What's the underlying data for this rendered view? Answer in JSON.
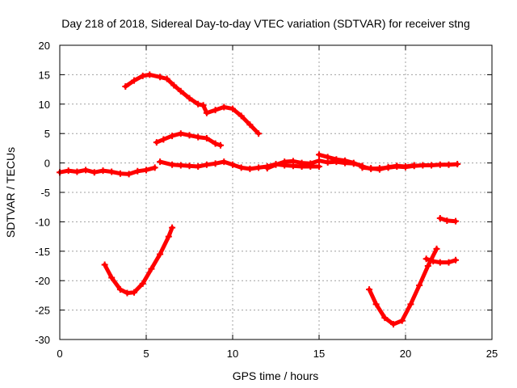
{
  "chart_data": {
    "type": "line",
    "title": "Day 218 of 2018, Sidereal Day-to-day VTEC variation (SDTVAR) for receiver stng",
    "xlabel": "GPS time / hours",
    "ylabel": "SDTVAR / TECUs",
    "xlim": [
      0,
      25
    ],
    "ylim": [
      -30,
      20
    ],
    "xticks": [
      0,
      5,
      10,
      15,
      20,
      25
    ],
    "yticks": [
      -30,
      -25,
      -20,
      -15,
      -10,
      -5,
      0,
      5,
      10,
      15,
      20
    ],
    "grid": true,
    "legend": "none",
    "color": "#ff0000",
    "series": [
      {
        "name": "track-1",
        "points": [
          [
            0.0,
            -1.6
          ],
          [
            0.5,
            -1.3
          ],
          [
            1.0,
            -1.5
          ],
          [
            1.5,
            -1.2
          ],
          [
            2.0,
            -1.6
          ],
          [
            2.5,
            -1.3
          ],
          [
            3.0,
            -1.5
          ],
          [
            3.5,
            -1.8
          ],
          [
            4.0,
            -1.9
          ],
          [
            4.5,
            -1.4
          ],
          [
            5.0,
            -1.2
          ],
          [
            5.5,
            -0.8
          ]
        ]
      },
      {
        "name": "track-2",
        "points": [
          [
            5.8,
            0.2
          ],
          [
            6.5,
            -0.3
          ],
          [
            7.0,
            -0.4
          ],
          [
            7.5,
            -0.5
          ],
          [
            8.0,
            -0.6
          ],
          [
            8.5,
            -0.3
          ],
          [
            9.0,
            -0.1
          ],
          [
            9.5,
            0.2
          ],
          [
            10.0,
            -0.3
          ],
          [
            10.5,
            -0.8
          ],
          [
            11.0,
            -1.0
          ],
          [
            11.5,
            -0.8
          ],
          [
            12.0,
            -0.6
          ],
          [
            12.5,
            -0.2
          ],
          [
            13.0,
            -0.4
          ],
          [
            13.5,
            -0.5
          ],
          [
            14.0,
            -0.6
          ],
          [
            14.5,
            -0.6
          ],
          [
            15.0,
            -0.6
          ]
        ]
      },
      {
        "name": "track-3",
        "points": [
          [
            12.0,
            -0.9
          ],
          [
            12.5,
            -0.3
          ],
          [
            13.0,
            0.2
          ],
          [
            13.5,
            0.3
          ],
          [
            14.0,
            0.0
          ],
          [
            14.5,
            -0.1
          ],
          [
            15.0,
            0.4
          ],
          [
            15.5,
            0.1
          ],
          [
            16.0,
            0.2
          ],
          [
            16.5,
            0.0
          ],
          [
            17.0,
            -0.1
          ],
          [
            17.5,
            -0.5
          ]
        ]
      },
      {
        "name": "track-4",
        "points": [
          [
            15.0,
            1.4
          ],
          [
            15.5,
            1.0
          ],
          [
            16.0,
            0.6
          ],
          [
            16.5,
            0.4
          ],
          [
            17.0,
            0.0
          ],
          [
            17.5,
            -0.6
          ],
          [
            18.0,
            -1.0
          ],
          [
            18.5,
            -0.9
          ],
          [
            19.0,
            -0.8
          ],
          [
            19.5,
            -0.6
          ],
          [
            20.0,
            -0.7
          ],
          [
            20.5,
            -0.5
          ],
          [
            21.0,
            -0.4
          ],
          [
            21.5,
            -0.4
          ],
          [
            22.0,
            -0.3
          ],
          [
            22.5,
            -0.3
          ],
          [
            23.0,
            -0.2
          ]
        ]
      },
      {
        "name": "track-5",
        "points": [
          [
            17.5,
            -0.8
          ],
          [
            18.0,
            -0.9
          ],
          [
            18.5,
            -1.1
          ],
          [
            19.0,
            -0.7
          ],
          [
            19.5,
            -0.5
          ],
          [
            20.0,
            -0.6
          ],
          [
            20.5,
            -0.4
          ]
        ]
      },
      {
        "name": "track-6",
        "points": [
          [
            3.8,
            13.0
          ],
          [
            4.3,
            14.0
          ],
          [
            4.8,
            14.8
          ],
          [
            5.2,
            15.0
          ],
          [
            5.8,
            14.6
          ],
          [
            6.2,
            14.3
          ],
          [
            6.6,
            13.2
          ],
          [
            7.0,
            12.2
          ],
          [
            7.5,
            11.0
          ],
          [
            8.0,
            10.0
          ],
          [
            8.3,
            9.8
          ],
          [
            8.5,
            8.5
          ],
          [
            9.0,
            9.0
          ],
          [
            9.5,
            9.5
          ],
          [
            10.0,
            9.2
          ],
          [
            10.5,
            8.0
          ],
          [
            11.0,
            6.5
          ],
          [
            11.5,
            5.0
          ]
        ]
      },
      {
        "name": "track-7",
        "points": [
          [
            5.6,
            3.5
          ],
          [
            6.0,
            4.0
          ],
          [
            6.5,
            4.6
          ],
          [
            7.0,
            5.0
          ],
          [
            7.5,
            4.7
          ],
          [
            8.0,
            4.4
          ],
          [
            8.5,
            4.2
          ],
          [
            9.0,
            3.3
          ],
          [
            9.3,
            3.0
          ]
        ]
      },
      {
        "name": "track-8",
        "points": [
          [
            2.6,
            -17.3
          ],
          [
            3.0,
            -19.5
          ],
          [
            3.5,
            -21.5
          ],
          [
            3.9,
            -22.1
          ],
          [
            4.3,
            -22.0
          ],
          [
            4.8,
            -20.5
          ],
          [
            5.3,
            -18.0
          ],
          [
            5.8,
            -15.5
          ],
          [
            6.3,
            -12.5
          ],
          [
            6.5,
            -11.0
          ]
        ]
      },
      {
        "name": "track-9",
        "points": [
          [
            17.9,
            -21.5
          ],
          [
            18.3,
            -24.0
          ],
          [
            18.8,
            -26.3
          ],
          [
            19.3,
            -27.4
          ],
          [
            19.8,
            -26.8
          ],
          [
            20.3,
            -24.0
          ],
          [
            20.8,
            -20.8
          ],
          [
            21.3,
            -17.5
          ],
          [
            21.8,
            -14.6
          ]
        ]
      },
      {
        "name": "track-10",
        "points": [
          [
            21.2,
            -16.3
          ],
          [
            21.6,
            -16.7
          ],
          [
            22.0,
            -16.9
          ],
          [
            22.5,
            -16.9
          ],
          [
            22.9,
            -16.5
          ]
        ]
      },
      {
        "name": "track-11",
        "points": [
          [
            22.0,
            -9.4
          ],
          [
            22.4,
            -9.8
          ],
          [
            22.9,
            -9.9
          ]
        ]
      }
    ]
  }
}
